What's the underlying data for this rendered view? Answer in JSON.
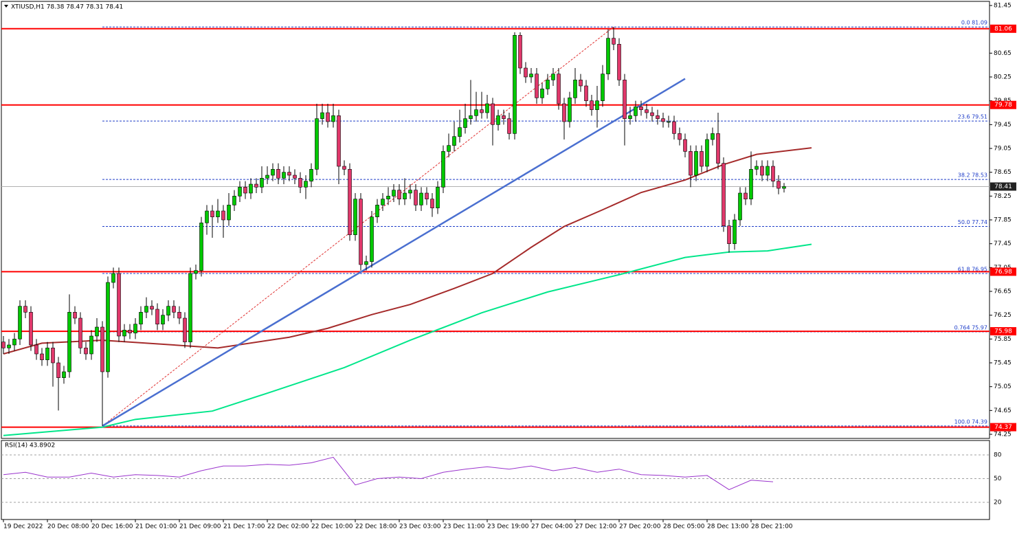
{
  "chart_data": {
    "type": "candlestick",
    "title": "XTIUSD,H1 78.38 78.47 78.31 78.41",
    "up_color": "#00c800",
    "down_color": "#e0386b",
    "open": [
      75.8,
      75.7,
      75.75,
      75.85,
      76.4,
      76.3,
      75.75,
      75.6,
      75.5,
      75.7,
      75.45,
      75.2,
      75.3,
      76.3,
      76.2,
      75.7,
      75.6,
      75.9,
      76.05,
      75.3,
      76.8,
      76.95,
      75.9,
      76.0,
      75.95,
      76.1,
      76.3,
      76.4,
      76.35,
      76.1,
      76.25,
      76.4,
      76.3,
      76.2,
      75.8,
      76.95,
      77.0,
      77.8,
      78.0,
      77.9,
      78.0,
      77.85,
      78.1,
      78.25,
      78.4,
      78.3,
      78.45,
      78.4,
      78.55,
      78.6,
      78.7,
      78.55,
      78.65,
      78.6,
      78.55,
      78.4,
      78.5,
      78.7,
      79.55,
      79.65,
      79.5,
      79.6,
      78.75,
      78.7,
      77.6,
      78.2,
      77.1,
      77.15,
      77.9,
      78.1,
      78.2,
      78.25,
      78.35,
      78.2,
      78.3,
      78.35,
      78.1,
      78.3,
      78.2,
      78.05,
      78.4,
      79.0,
      79.1,
      79.25,
      79.4,
      79.55,
      79.6,
      79.7,
      79.65,
      79.8,
      79.45,
      79.6,
      79.55,
      79.3,
      80.95,
      80.4,
      80.25,
      80.3,
      79.9,
      80.05,
      80.2,
      80.3,
      79.8,
      79.5,
      79.9,
      80.2,
      80.1,
      79.85,
      79.7,
      79.85,
      80.3,
      80.9,
      80.8,
      80.2,
      79.55,
      79.6,
      79.75,
      79.7,
      79.65,
      79.6,
      79.55,
      79.5,
      79.5,
      79.3,
      79.2,
      79.0,
      78.6,
      79.0,
      78.75,
      79.2,
      79.3,
      78.8,
      77.75,
      77.45,
      77.85,
      78.3,
      78.2,
      78.7,
      78.75,
      78.6,
      78.75,
      78.5,
      78.38
    ],
    "high": [
      75.9,
      75.85,
      75.95,
      76.5,
      76.5,
      76.4,
      75.85,
      75.7,
      75.8,
      75.8,
      75.55,
      75.4,
      76.6,
      76.4,
      76.3,
      75.8,
      76.0,
      76.2,
      76.15,
      76.9,
      77.05,
      77.05,
      76.1,
      76.1,
      76.2,
      76.4,
      76.55,
      76.5,
      76.45,
      76.35,
      76.5,
      76.5,
      76.4,
      76.3,
      77.05,
      77.1,
      77.9,
      78.1,
      78.1,
      78.2,
      78.1,
      78.3,
      78.35,
      78.5,
      78.5,
      78.55,
      78.55,
      78.75,
      78.75,
      78.8,
      78.8,
      78.75,
      78.75,
      78.7,
      78.65,
      78.6,
      78.8,
      79.8,
      79.8,
      79.8,
      79.8,
      79.7,
      78.85,
      78.8,
      78.3,
      78.3,
      77.25,
      78.0,
      78.2,
      78.3,
      78.4,
      78.45,
      78.45,
      78.55,
      78.45,
      78.45,
      78.4,
      78.4,
      78.3,
      78.5,
      79.1,
      79.3,
      79.5,
      79.7,
      79.8,
      80.2,
      80.0,
      80.0,
      79.95,
      79.9,
      79.7,
      79.7,
      79.65,
      81.0,
      81.0,
      80.5,
      80.4,
      80.4,
      80.15,
      80.3,
      80.4,
      80.4,
      79.9,
      80.0,
      80.4,
      80.3,
      80.2,
      79.95,
      80.1,
      80.45,
      81.05,
      81.09,
      80.9,
      80.3,
      79.75,
      79.85,
      79.85,
      79.8,
      79.75,
      79.7,
      79.65,
      79.6,
      79.6,
      79.4,
      79.3,
      79.1,
      79.1,
      79.1,
      79.3,
      79.4,
      79.65,
      78.9,
      77.85,
      77.95,
      78.4,
      78.4,
      79.0,
      78.85,
      78.85,
      78.85,
      78.85,
      78.6,
      78.47
    ],
    "low": [
      75.6,
      75.6,
      75.65,
      75.75,
      76.2,
      75.65,
      75.5,
      75.4,
      75.4,
      75.05,
      74.65,
      75.1,
      75.2,
      76.1,
      75.6,
      75.5,
      75.5,
      75.8,
      74.39,
      75.2,
      76.7,
      75.8,
      75.8,
      75.85,
      75.85,
      76.0,
      76.2,
      76.25,
      76.0,
      76.0,
      76.15,
      76.2,
      76.1,
      75.7,
      75.7,
      76.85,
      76.9,
      77.6,
      77.55,
      77.8,
      77.55,
      77.75,
      78.0,
      78.15,
      78.2,
      78.2,
      78.3,
      78.3,
      78.45,
      78.5,
      78.45,
      78.45,
      78.5,
      78.45,
      78.3,
      78.2,
      78.4,
      78.6,
      79.45,
      79.4,
      79.4,
      78.45,
      78.6,
      77.5,
      77.5,
      77.0,
      77.0,
      77.05,
      77.8,
      78.0,
      78.1,
      78.15,
      78.1,
      78.1,
      78.2,
      78.0,
      78.0,
      78.1,
      77.9,
      77.95,
      78.3,
      78.9,
      79.0,
      79.15,
      79.3,
      79.45,
      79.5,
      79.55,
      79.55,
      79.1,
      79.35,
      79.45,
      79.2,
      79.2,
      80.3,
      80.15,
      80.15,
      79.8,
      79.8,
      79.95,
      80.1,
      79.7,
      79.2,
      79.4,
      79.8,
      80.0,
      79.75,
      79.6,
      79.4,
      79.75,
      80.2,
      80.7,
      80.1,
      79.1,
      79.45,
      79.5,
      79.6,
      79.55,
      79.5,
      79.45,
      79.4,
      79.4,
      79.2,
      79.1,
      78.9,
      78.4,
      78.5,
      78.65,
      78.65,
      79.1,
      78.7,
      77.65,
      77.3,
      77.35,
      77.75,
      78.1,
      78.1,
      78.6,
      78.5,
      78.5,
      78.4,
      78.28,
      78.31
    ],
    "close": [
      75.7,
      75.75,
      75.85,
      76.4,
      76.3,
      75.75,
      75.6,
      75.5,
      75.7,
      75.45,
      75.2,
      75.3,
      76.3,
      76.2,
      75.7,
      75.6,
      75.9,
      76.05,
      75.3,
      76.8,
      76.95,
      75.9,
      76.0,
      75.95,
      76.1,
      76.3,
      76.4,
      76.35,
      76.1,
      76.25,
      76.4,
      76.3,
      76.2,
      75.8,
      76.95,
      77.0,
      77.8,
      78.0,
      77.9,
      78.0,
      77.85,
      78.1,
      78.25,
      78.4,
      78.3,
      78.45,
      78.4,
      78.55,
      78.6,
      78.7,
      78.55,
      78.65,
      78.6,
      78.55,
      78.4,
      78.5,
      78.7,
      79.55,
      79.65,
      79.5,
      79.6,
      78.75,
      78.7,
      77.6,
      78.2,
      77.1,
      77.15,
      77.9,
      78.1,
      78.2,
      78.25,
      78.35,
      78.2,
      78.3,
      78.35,
      78.1,
      78.3,
      78.2,
      78.05,
      78.4,
      79.0,
      79.1,
      79.25,
      79.4,
      79.55,
      79.6,
      79.7,
      79.65,
      79.8,
      79.45,
      79.6,
      79.55,
      79.3,
      80.95,
      80.4,
      80.25,
      80.3,
      79.9,
      80.05,
      80.2,
      80.3,
      79.8,
      79.5,
      79.9,
      80.2,
      80.1,
      79.85,
      79.7,
      79.85,
      80.3,
      80.9,
      80.8,
      80.2,
      79.55,
      79.6,
      79.75,
      79.7,
      79.65,
      79.6,
      79.55,
      79.5,
      79.5,
      79.3,
      79.2,
      79.0,
      78.6,
      79.0,
      78.75,
      79.2,
      79.3,
      78.8,
      77.75,
      77.45,
      77.85,
      78.3,
      78.2,
      78.7,
      78.75,
      78.6,
      78.75,
      78.5,
      78.38,
      78.41
    ],
    "xlim": [
      -0.375,
      179.375
    ],
    "xticks": [
      {
        "value": 0,
        "label": "19 Dec 2022"
      },
      {
        "value": 8,
        "label": "20 Dec 08:00"
      },
      {
        "value": 16,
        "label": "20 Dec 16:00"
      },
      {
        "value": 24,
        "label": "21 Dec 01:00"
      },
      {
        "value": 32,
        "label": "21 Dec 09:00"
      },
      {
        "value": 40,
        "label": "21 Dec 17:00"
      },
      {
        "value": 48,
        "label": "22 Dec 02:00"
      },
      {
        "value": 56,
        "label": "22 Dec 10:00"
      },
      {
        "value": 64,
        "label": "22 Dec 18:00"
      },
      {
        "value": 72,
        "label": "23 Dec 03:00"
      },
      {
        "value": 80,
        "label": "23 Dec 11:00"
      },
      {
        "value": 88,
        "label": "23 Dec 19:00"
      },
      {
        "value": 96,
        "label": "27 Dec 04:00"
      },
      {
        "value": 104,
        "label": "27 Dec 12:00"
      },
      {
        "value": 112,
        "label": "27 Dec 20:00"
      },
      {
        "value": 120,
        "label": "28 Dec 05:00"
      },
      {
        "value": 128,
        "label": "28 Dec 13:00"
      },
      {
        "value": 136,
        "label": "28 Dec 21:00"
      }
    ],
    "ylim": [
      74.25,
      81.45
    ],
    "yticks": [
      81.45,
      80.65,
      80.25,
      79.85,
      79.45,
      79.05,
      78.65,
      78.25,
      77.85,
      77.45,
      77.05,
      76.65,
      76.25,
      75.85,
      75.45,
      75.05,
      74.65,
      74.25
    ],
    "levels": [
      81.06,
      79.78,
      76.98,
      75.98,
      74.37
    ],
    "level_color": "#ff0000",
    "fib_levels": [
      {
        "value": 81.09,
        "label": "0.0 81.09"
      },
      {
        "value": 79.51,
        "label": "23.6 79.51"
      },
      {
        "value": 78.53,
        "label": "38.2 78.53"
      },
      {
        "value": 77.74,
        "label": "50.0 77.74"
      },
      {
        "value": 76.95,
        "label": "61.8 76.95"
      },
      {
        "value": 75.97,
        "label": "0.764 75.97"
      },
      {
        "value": 74.39,
        "label": "100.0 74.39"
      }
    ],
    "fib_color": "#1e3cc8",
    "fib_line": {
      "x": [
        18,
        111
      ],
      "values": [
        74.39,
        81.09
      ],
      "color": "#e03030"
    },
    "trendline": {
      "x": [
        18,
        124
      ],
      "values": [
        74.39,
        80.22
      ],
      "color": "#4a6fd0"
    },
    "last": 78.41,
    "overlays": [
      {
        "color": "#a52a2a",
        "x": [
          0,
          7,
          18,
          39,
          52,
          59,
          67,
          74,
          82,
          89,
          96,
          102,
          109,
          116,
          124,
          131,
          137,
          147
        ],
        "values": [
          75.6,
          75.78,
          75.83,
          75.7,
          75.88,
          76.03,
          76.26,
          76.43,
          76.7,
          76.95,
          77.39,
          77.74,
          78.02,
          78.31,
          78.52,
          78.78,
          78.95,
          79.06
        ]
      },
      {
        "color": "#00e68a",
        "x": [
          0,
          18,
          24,
          38,
          49,
          62,
          74,
          87,
          99,
          112,
          124,
          132,
          139,
          147
        ],
        "values": [
          74.23,
          74.37,
          74.5,
          74.64,
          74.97,
          75.37,
          75.83,
          76.29,
          76.64,
          76.93,
          77.22,
          77.31,
          77.33,
          77.44
        ]
      }
    ],
    "rsi": {
      "title": "RSI(14) 43.8902",
      "color": "#9932cc",
      "ylim": [
        0,
        100
      ],
      "yticks": [
        20,
        50,
        80
      ],
      "x": [
        0,
        4,
        8,
        12,
        16,
        20,
        24,
        28,
        32,
        36,
        40,
        44,
        48,
        52,
        56,
        60,
        64,
        68,
        72,
        76,
        80,
        84,
        88,
        92,
        96,
        100,
        104,
        108,
        112,
        116,
        120,
        124,
        128,
        132,
        136,
        140
      ],
      "values": [
        55,
        58,
        52,
        52,
        57,
        52,
        55,
        54,
        52,
        60,
        66,
        66,
        68,
        67,
        70,
        77,
        42,
        50,
        52,
        50,
        58,
        62,
        65,
        62,
        66,
        60,
        64,
        58,
        62,
        55,
        54,
        52,
        54,
        36,
        48,
        46
      ]
    }
  }
}
